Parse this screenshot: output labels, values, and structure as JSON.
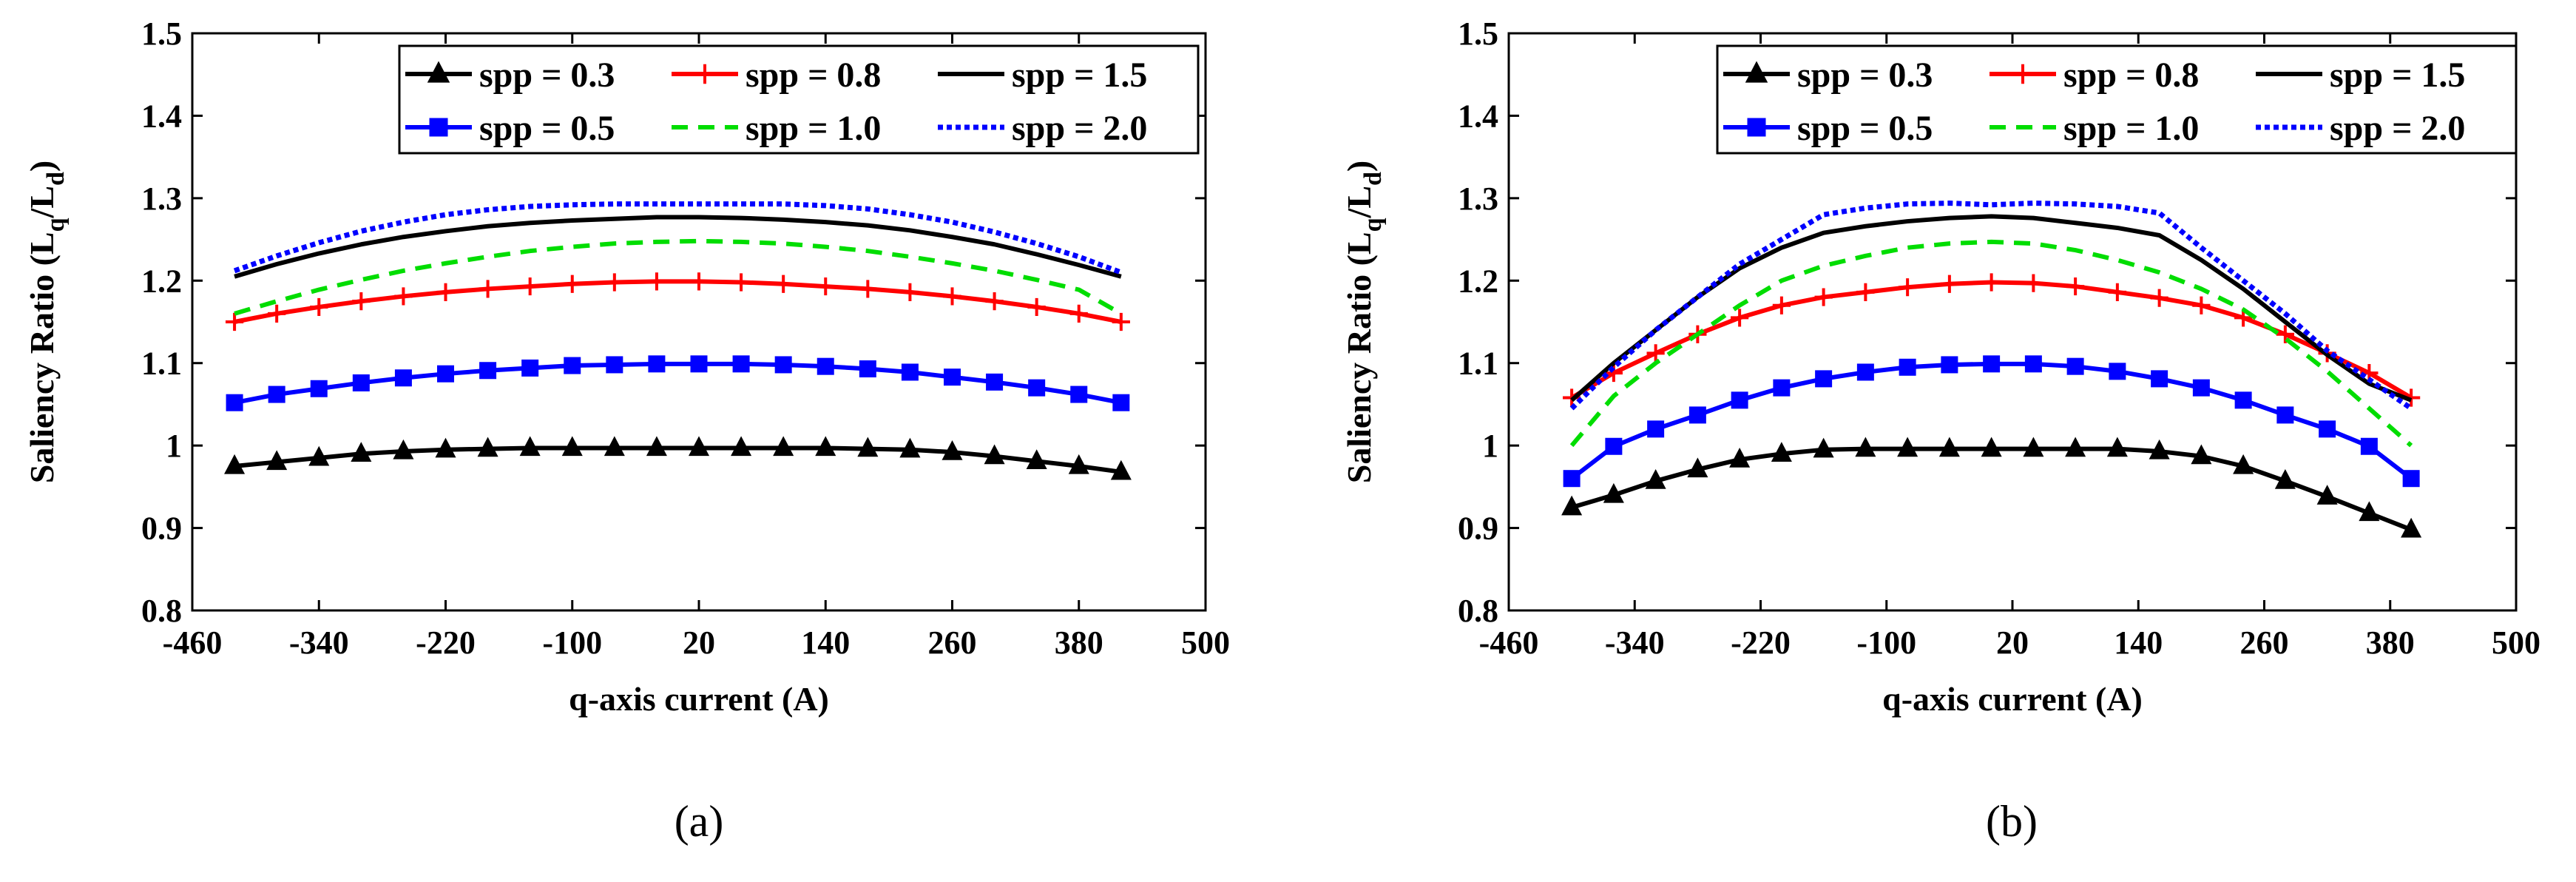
{
  "colors": {
    "spp_0_3": "#000000",
    "spp_0_5": "#0000ff",
    "spp_0_8": "#ff0000",
    "spp_1_0": "#00dd00",
    "spp_1_5": "#000000",
    "spp_2_0": "#0000ff"
  },
  "chart_data": [
    {
      "type": "line",
      "caption": "(a)",
      "xlabel": "q-axis current (A)",
      "ylabel_parts": {
        "main": "Saliency Ratio (L",
        "sub1": "q",
        "mid": "/L",
        "sub2": "d",
        "end": ")"
      },
      "xlim": [
        -460,
        500
      ],
      "ylim": [
        0.8,
        1.5
      ],
      "xticks": [
        -460,
        -340,
        -220,
        -100,
        20,
        140,
        260,
        380,
        500
      ],
      "xtick_labels": [
        "-460",
        "-340",
        "-220",
        "-100",
        "20",
        "140",
        "260",
        "380",
        "500"
      ],
      "yticks": [
        0.8,
        0.9,
        1.0,
        1.1,
        1.2,
        1.3,
        1.4,
        1.5
      ],
      "ytick_labels": [
        "0.8",
        "0.9",
        "1",
        "1.1",
        "1.2",
        "1.3",
        "1.4",
        "1.5"
      ],
      "x": [
        -420,
        -380,
        -340,
        -300,
        -260,
        -220,
        -180,
        -140,
        -100,
        -60,
        -20,
        20,
        60,
        100,
        140,
        180,
        220,
        260,
        300,
        340,
        380,
        420
      ],
      "series": [
        {
          "name": "spp = 0.3",
          "color_key": "spp_0_3",
          "style": "solid",
          "marker": "triangle",
          "values": [
            0.975,
            0.98,
            0.985,
            0.99,
            0.993,
            0.995,
            0.996,
            0.997,
            0.997,
            0.997,
            0.997,
            0.997,
            0.997,
            0.997,
            0.997,
            0.996,
            0.995,
            0.992,
            0.987,
            0.981,
            0.975,
            0.968
          ]
        },
        {
          "name": "spp = 0.5",
          "color_key": "spp_0_5",
          "style": "solid",
          "marker": "square",
          "values": [
            1.052,
            1.062,
            1.069,
            1.076,
            1.082,
            1.087,
            1.091,
            1.094,
            1.097,
            1.098,
            1.099,
            1.099,
            1.099,
            1.098,
            1.096,
            1.093,
            1.089,
            1.083,
            1.077,
            1.07,
            1.062,
            1.052
          ]
        },
        {
          "name": "spp = 0.8",
          "color_key": "spp_0_8",
          "style": "solid",
          "marker": "plus",
          "values": [
            1.15,
            1.16,
            1.168,
            1.175,
            1.181,
            1.186,
            1.19,
            1.193,
            1.196,
            1.198,
            1.199,
            1.199,
            1.198,
            1.196,
            1.193,
            1.19,
            1.186,
            1.181,
            1.175,
            1.168,
            1.16,
            1.15
          ]
        },
        {
          "name": "spp = 1.0",
          "color_key": "spp_1_0",
          "style": "dashed",
          "marker": "none",
          "values": [
            1.16,
            1.175,
            1.189,
            1.201,
            1.212,
            1.221,
            1.229,
            1.236,
            1.241,
            1.245,
            1.247,
            1.248,
            1.247,
            1.245,
            1.241,
            1.236,
            1.229,
            1.221,
            1.212,
            1.201,
            1.189,
            1.16
          ]
        },
        {
          "name": "spp = 1.5",
          "color_key": "spp_1_5",
          "style": "solid",
          "marker": "none",
          "values": [
            1.205,
            1.22,
            1.233,
            1.244,
            1.253,
            1.26,
            1.266,
            1.27,
            1.273,
            1.275,
            1.277,
            1.277,
            1.276,
            1.274,
            1.271,
            1.267,
            1.261,
            1.253,
            1.244,
            1.232,
            1.219,
            1.205
          ]
        },
        {
          "name": "spp = 2.0",
          "color_key": "spp_2_0",
          "style": "dotted",
          "marker": "none",
          "values": [
            1.212,
            1.23,
            1.246,
            1.26,
            1.271,
            1.28,
            1.286,
            1.29,
            1.292,
            1.293,
            1.293,
            1.293,
            1.293,
            1.293,
            1.291,
            1.287,
            1.28,
            1.271,
            1.259,
            1.245,
            1.229,
            1.21
          ]
        }
      ]
    },
    {
      "type": "line",
      "caption": "(b)",
      "xlabel": "q-axis current (A)",
      "ylabel_parts": {
        "main": "Saliency Ratio (L",
        "sub1": "q",
        "mid": "/L",
        "sub2": "d",
        "end": ")"
      },
      "xlim": [
        -460,
        500
      ],
      "ylim": [
        0.8,
        1.5
      ],
      "xticks": [
        -460,
        -340,
        -220,
        -100,
        20,
        140,
        260,
        380,
        500
      ],
      "xtick_labels": [
        "-460",
        "-340",
        "-220",
        "-100",
        "20",
        "140",
        "260",
        "380",
        "500"
      ],
      "yticks": [
        0.8,
        0.9,
        1.0,
        1.1,
        1.2,
        1.3,
        1.4,
        1.5
      ],
      "ytick_labels": [
        "0.8",
        "0.9",
        "1",
        "1.1",
        "1.2",
        "1.3",
        "1.4",
        "1.5"
      ],
      "x": [
        -400,
        -360,
        -320,
        -280,
        -240,
        -200,
        -160,
        -120,
        -80,
        -40,
        0,
        40,
        80,
        120,
        160,
        200,
        240,
        280,
        320,
        360,
        400
      ],
      "series": [
        {
          "name": "spp = 0.3",
          "color_key": "spp_0_3",
          "style": "solid",
          "marker": "triangle",
          "values": [
            0.925,
            0.94,
            0.957,
            0.971,
            0.983,
            0.99,
            0.995,
            0.996,
            0.996,
            0.996,
            0.996,
            0.996,
            0.996,
            0.996,
            0.993,
            0.987,
            0.975,
            0.957,
            0.938,
            0.918,
            0.898
          ]
        },
        {
          "name": "spp = 0.5",
          "color_key": "spp_0_5",
          "style": "solid",
          "marker": "square",
          "values": [
            0.96,
            0.999,
            1.02,
            1.037,
            1.055,
            1.07,
            1.081,
            1.089,
            1.095,
            1.098,
            1.099,
            1.099,
            1.096,
            1.09,
            1.081,
            1.07,
            1.055,
            1.037,
            1.02,
            0.999,
            0.96
          ]
        },
        {
          "name": "spp = 0.8",
          "color_key": "spp_0_8",
          "style": "solid",
          "marker": "plus",
          "values": [
            1.058,
            1.088,
            1.112,
            1.135,
            1.155,
            1.17,
            1.18,
            1.186,
            1.192,
            1.196,
            1.198,
            1.197,
            1.193,
            1.186,
            1.179,
            1.17,
            1.155,
            1.135,
            1.112,
            1.088,
            1.058
          ]
        },
        {
          "name": "spp = 1.0",
          "color_key": "spp_1_0",
          "style": "dashed",
          "marker": "none",
          "values": [
            1.0,
            1.06,
            1.1,
            1.135,
            1.17,
            1.2,
            1.218,
            1.23,
            1.24,
            1.245,
            1.247,
            1.245,
            1.237,
            1.225,
            1.21,
            1.19,
            1.165,
            1.13,
            1.09,
            1.045,
            1.0
          ]
        },
        {
          "name": "spp = 1.5",
          "color_key": "spp_1_5",
          "style": "solid",
          "marker": "none",
          "values": [
            1.055,
            1.1,
            1.14,
            1.18,
            1.215,
            1.24,
            1.258,
            1.266,
            1.272,
            1.276,
            1.278,
            1.276,
            1.27,
            1.264,
            1.255,
            1.225,
            1.19,
            1.15,
            1.11,
            1.075,
            1.055
          ]
        },
        {
          "name": "spp = 2.0",
          "color_key": "spp_2_0",
          "style": "dotted",
          "marker": "none",
          "values": [
            1.045,
            1.095,
            1.14,
            1.18,
            1.22,
            1.25,
            1.28,
            1.288,
            1.293,
            1.294,
            1.292,
            1.294,
            1.293,
            1.29,
            1.282,
            1.24,
            1.2,
            1.16,
            1.115,
            1.08,
            1.045
          ]
        }
      ]
    }
  ]
}
